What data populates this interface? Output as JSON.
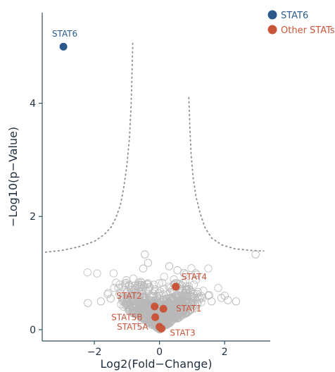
{
  "chart_data": {
    "type": "scatter",
    "title": "",
    "xlabel": "Log2(Fold−Change)",
    "ylabel": "−Log10(p−Value)",
    "xlim": [
      -3.6,
      3.4
    ],
    "ylim": [
      -0.2,
      5.6
    ],
    "x_ticks": [
      -2,
      0,
      2
    ],
    "y_ticks": [
      0,
      2,
      4
    ],
    "x_tick_labels": [
      "−2",
      "0",
      "2"
    ],
    "y_tick_labels": [
      "0",
      "2",
      "4"
    ],
    "grid": false,
    "legend_position": "top-right",
    "legend": [
      {
        "label": "STAT6",
        "color": "#2b5a8a"
      },
      {
        "label": "Other STATs",
        "color": "#c9553b"
      }
    ],
    "colors": {
      "background_points": "#b9b9b9",
      "stat6": "#2b5a8a",
      "other_stats": "#c9553b",
      "threshold_curve": "#8c8c8c",
      "axis": "#2f4f5f"
    },
    "highlighted_points": [
      {
        "label": "STAT6",
        "x": -2.95,
        "y": 5.0,
        "group": "STAT6"
      },
      {
        "label": "STAT4",
        "x": 0.5,
        "y": 0.76,
        "group": "Other STATs"
      },
      {
        "label": "STAT2",
        "x": -0.15,
        "y": 0.41,
        "group": "Other STATs"
      },
      {
        "label": "STAT1",
        "x": 0.12,
        "y": 0.37,
        "group": "Other STATs"
      },
      {
        "label": "STAT5B",
        "x": -0.13,
        "y": 0.22,
        "group": "Other STATs"
      },
      {
        "label": "STAT5A",
        "x": 0.0,
        "y": 0.05,
        "group": "Other STATs"
      },
      {
        "label": "STAT3",
        "x": 0.06,
        "y": 0.02,
        "group": "Other STATs"
      }
    ],
    "threshold_curve": {
      "description": "significance boundary",
      "left": [
        [
          -3.5,
          1.37
        ],
        [
          -3.0,
          1.4
        ],
        [
          -2.5,
          1.46
        ],
        [
          -2.0,
          1.56
        ],
        [
          -1.7,
          1.68
        ],
        [
          -1.5,
          1.8
        ],
        [
          -1.35,
          1.96
        ],
        [
          -1.2,
          2.2
        ],
        [
          -1.1,
          2.5
        ],
        [
          -1.0,
          2.9
        ],
        [
          -0.92,
          3.4
        ],
        [
          -0.87,
          4.0
        ],
        [
          -0.84,
          4.6
        ],
        [
          -0.82,
          5.1
        ]
      ],
      "right": [
        [
          0.9,
          4.1
        ],
        [
          0.93,
          3.6
        ],
        [
          0.97,
          3.1
        ],
        [
          1.03,
          2.7
        ],
        [
          1.12,
          2.35
        ],
        [
          1.25,
          2.05
        ],
        [
          1.4,
          1.8
        ],
        [
          1.6,
          1.62
        ],
        [
          1.9,
          1.5
        ],
        [
          2.3,
          1.43
        ],
        [
          2.8,
          1.4
        ],
        [
          3.2,
          1.39
        ]
      ]
    }
  }
}
